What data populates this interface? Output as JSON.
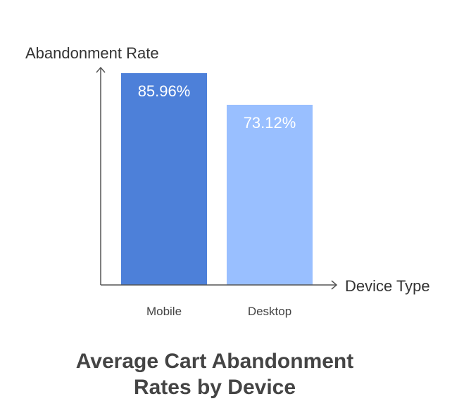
{
  "chart_data": {
    "type": "bar",
    "title_lines": [
      "Average Cart Abandonment",
      "Rates by Device"
    ],
    "xlabel": "Device Type",
    "ylabel": "Abandonment Rate",
    "categories": [
      "Mobile",
      "Desktop"
    ],
    "values": [
      85.96,
      73.12
    ],
    "value_labels": [
      "85.96%",
      "73.12%"
    ],
    "value_unit": "%",
    "ylim": [
      0,
      85.96
    ],
    "grid": false,
    "legend": "none",
    "colors": [
      "#4d80d9",
      "#99bfff"
    ],
    "axis_color": "#555555"
  }
}
